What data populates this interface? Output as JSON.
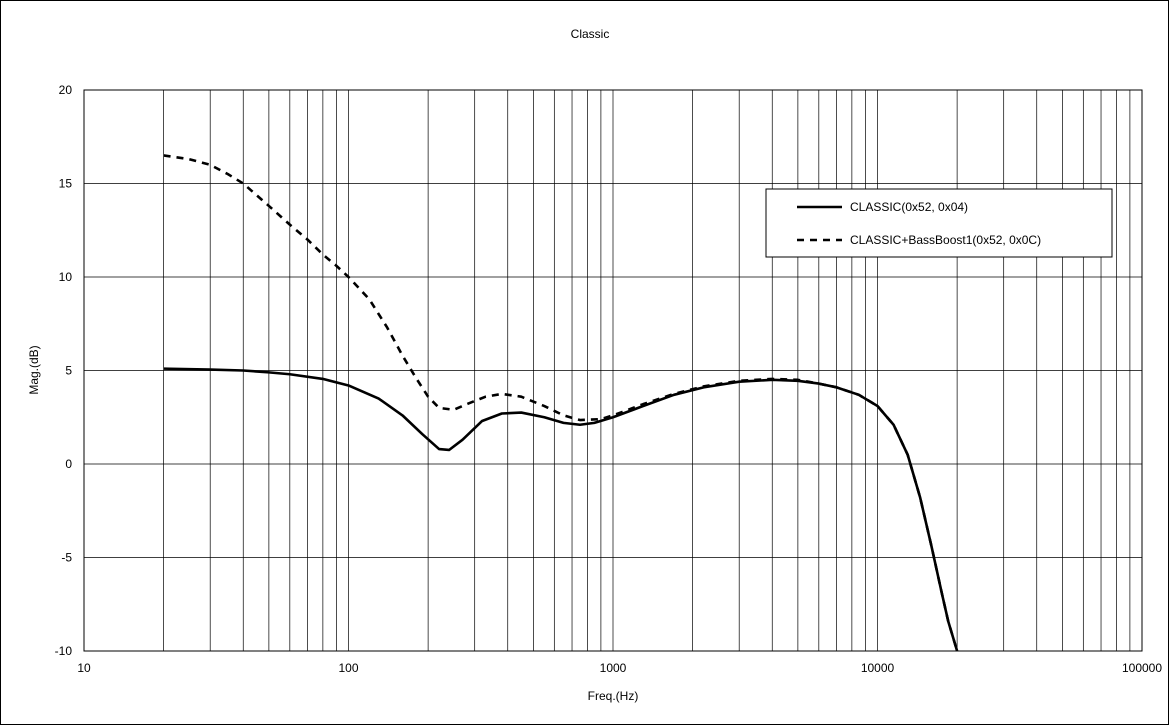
{
  "chart_data": {
    "type": "line",
    "title": "Classic",
    "xlabel": "Freq.(Hz)",
    "ylabel": "Mag.(dB)",
    "x_scale": "log",
    "xlim": [
      10,
      100000
    ],
    "ylim": [
      -10,
      20
    ],
    "x_ticks": [
      10,
      100,
      1000,
      10000,
      100000
    ],
    "x_tick_labels": [
      "10",
      "100",
      "1000",
      "10000",
      "100000"
    ],
    "y_ticks": [
      -10,
      -5,
      0,
      5,
      10,
      15,
      20
    ],
    "y_tick_labels": [
      "-10",
      "-5",
      "0",
      "5",
      "10",
      "15",
      "20"
    ],
    "grid": true,
    "legend_position": "top-right",
    "series": [
      {
        "name": "CLASSIC(0x52, 0x04)",
        "style": "solid",
        "color": "#000000",
        "points": [
          [
            20,
            5.1
          ],
          [
            30,
            5.05
          ],
          [
            40,
            5.0
          ],
          [
            50,
            4.9
          ],
          [
            60,
            4.8
          ],
          [
            80,
            4.55
          ],
          [
            100,
            4.2
          ],
          [
            130,
            3.5
          ],
          [
            160,
            2.6
          ],
          [
            190,
            1.6
          ],
          [
            220,
            0.8
          ],
          [
            240,
            0.75
          ],
          [
            270,
            1.3
          ],
          [
            320,
            2.3
          ],
          [
            380,
            2.7
          ],
          [
            450,
            2.75
          ],
          [
            550,
            2.5
          ],
          [
            650,
            2.2
          ],
          [
            750,
            2.1
          ],
          [
            850,
            2.2
          ],
          [
            1000,
            2.5
          ],
          [
            1300,
            3.1
          ],
          [
            1700,
            3.7
          ],
          [
            2200,
            4.1
          ],
          [
            3000,
            4.4
          ],
          [
            4000,
            4.5
          ],
          [
            5000,
            4.45
          ],
          [
            6000,
            4.3
          ],
          [
            7000,
            4.1
          ],
          [
            8500,
            3.7
          ],
          [
            10000,
            3.1
          ],
          [
            11500,
            2.1
          ],
          [
            13000,
            0.5
          ],
          [
            14500,
            -1.8
          ],
          [
            16000,
            -4.4
          ],
          [
            17500,
            -6.9
          ],
          [
            18500,
            -8.4
          ],
          [
            20000,
            -10
          ]
        ]
      },
      {
        "name": "CLASSIC+BassBoost1(0x52, 0x0C)",
        "style": "dashed",
        "color": "#000000",
        "points": [
          [
            20,
            16.5
          ],
          [
            25,
            16.3
          ],
          [
            30,
            16.0
          ],
          [
            35,
            15.5
          ],
          [
            40,
            15.0
          ],
          [
            50,
            13.8
          ],
          [
            60,
            12.8
          ],
          [
            70,
            12.0
          ],
          [
            80,
            11.2
          ],
          [
            90,
            10.6
          ],
          [
            100,
            10.0
          ],
          [
            120,
            8.8
          ],
          [
            140,
            7.3
          ],
          [
            160,
            5.8
          ],
          [
            180,
            4.6
          ],
          [
            200,
            3.6
          ],
          [
            220,
            3.0
          ],
          [
            250,
            2.9
          ],
          [
            280,
            3.2
          ],
          [
            330,
            3.6
          ],
          [
            380,
            3.75
          ],
          [
            450,
            3.6
          ],
          [
            550,
            3.1
          ],
          [
            650,
            2.6
          ],
          [
            750,
            2.35
          ],
          [
            900,
            2.4
          ],
          [
            1000,
            2.6
          ],
          [
            1300,
            3.2
          ],
          [
            1700,
            3.75
          ],
          [
            2200,
            4.15
          ],
          [
            3000,
            4.45
          ],
          [
            4000,
            4.55
          ],
          [
            5000,
            4.5
          ],
          [
            6000,
            4.3
          ],
          [
            7000,
            4.1
          ],
          [
            8500,
            3.7
          ],
          [
            10000,
            3.1
          ],
          [
            11500,
            2.1
          ],
          [
            13000,
            0.5
          ],
          [
            14500,
            -1.8
          ],
          [
            16000,
            -4.4
          ],
          [
            17500,
            -6.9
          ],
          [
            18500,
            -8.4
          ],
          [
            20000,
            -10
          ]
        ]
      }
    ]
  }
}
